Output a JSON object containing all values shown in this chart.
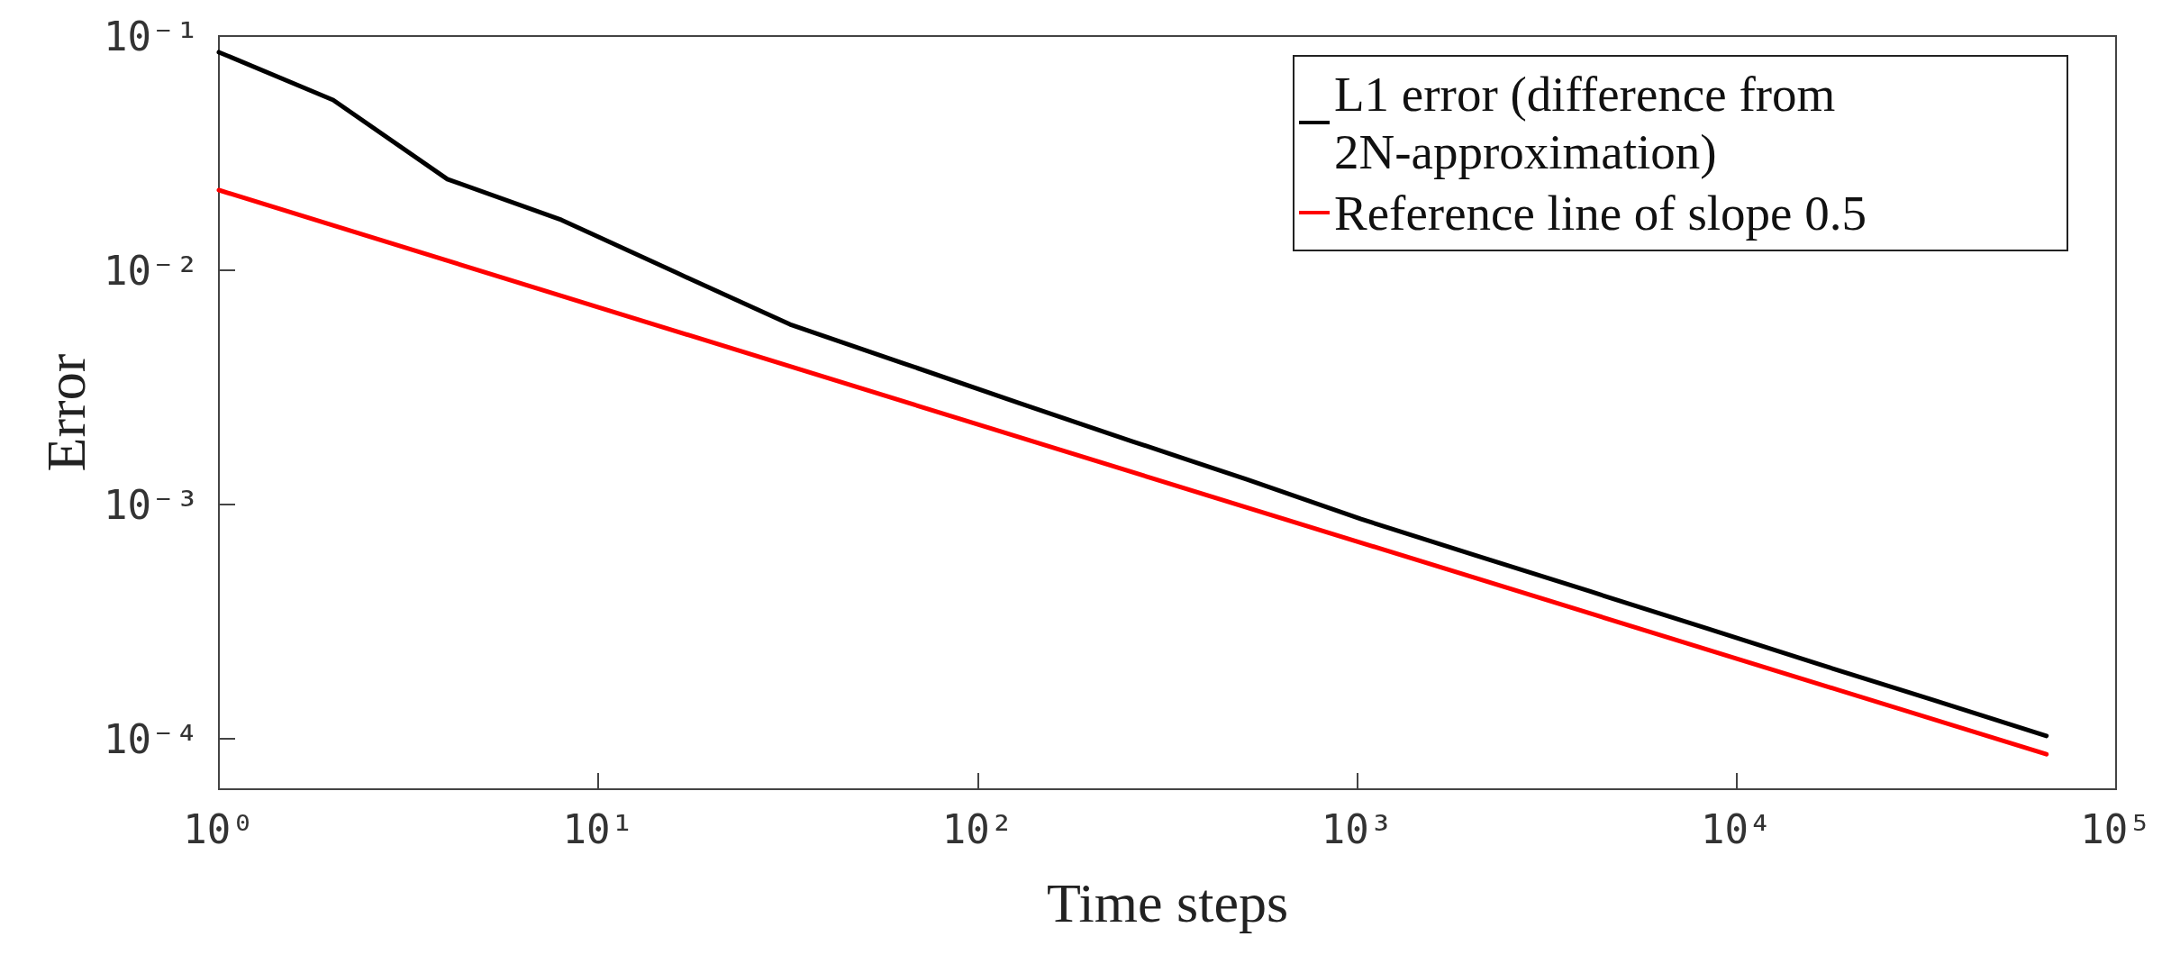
{
  "chart_data": {
    "type": "line",
    "xlabel": "Time steps",
    "ylabel": "Error",
    "log": "xy",
    "xlim": [
      1,
      100000
    ],
    "ylim": [
      6.1e-05,
      0.1
    ],
    "xticks": [
      {
        "value": 1,
        "label": "10⁰"
      },
      {
        "value": 10,
        "label": "10¹"
      },
      {
        "value": 100,
        "label": "10²"
      },
      {
        "value": 1000,
        "label": "10³"
      },
      {
        "value": 10000,
        "label": "10⁴"
      },
      {
        "value": 100000,
        "label": "10⁵"
      }
    ],
    "yticks": [
      {
        "value": 0.0001,
        "label": "10⁻⁴"
      },
      {
        "value": 0.001,
        "label": "10⁻³"
      },
      {
        "value": 0.01,
        "label": "10⁻²"
      },
      {
        "value": 0.1,
        "label": "10⁻¹"
      }
    ],
    "grid": false,
    "legend": "top right",
    "marker": "none",
    "line_style": "solid",
    "series": [
      {
        "name": "L1 error (difference from 2N-approximation)",
        "color": "#000000",
        "x": [
          1,
          2,
          4,
          8,
          16,
          32,
          64,
          128,
          256,
          512,
          1024,
          2048,
          4096,
          8192,
          16384,
          32768,
          65536
        ],
        "values": [
          0.0853,
          0.0533,
          0.0245,
          0.0164,
          0.0098,
          0.00588,
          0.004,
          0.00272,
          0.00186,
          0.00128,
          0.000867,
          0.000608,
          0.000427,
          0.000299,
          0.000209,
          0.000147,
          0.000103
        ]
      },
      {
        "name": "Reference line of slope 0.5",
        "color": "#ff0000",
        "x": [
          1,
          65536
        ],
        "values": [
          0.022,
          8.6e-05
        ]
      }
    ]
  }
}
